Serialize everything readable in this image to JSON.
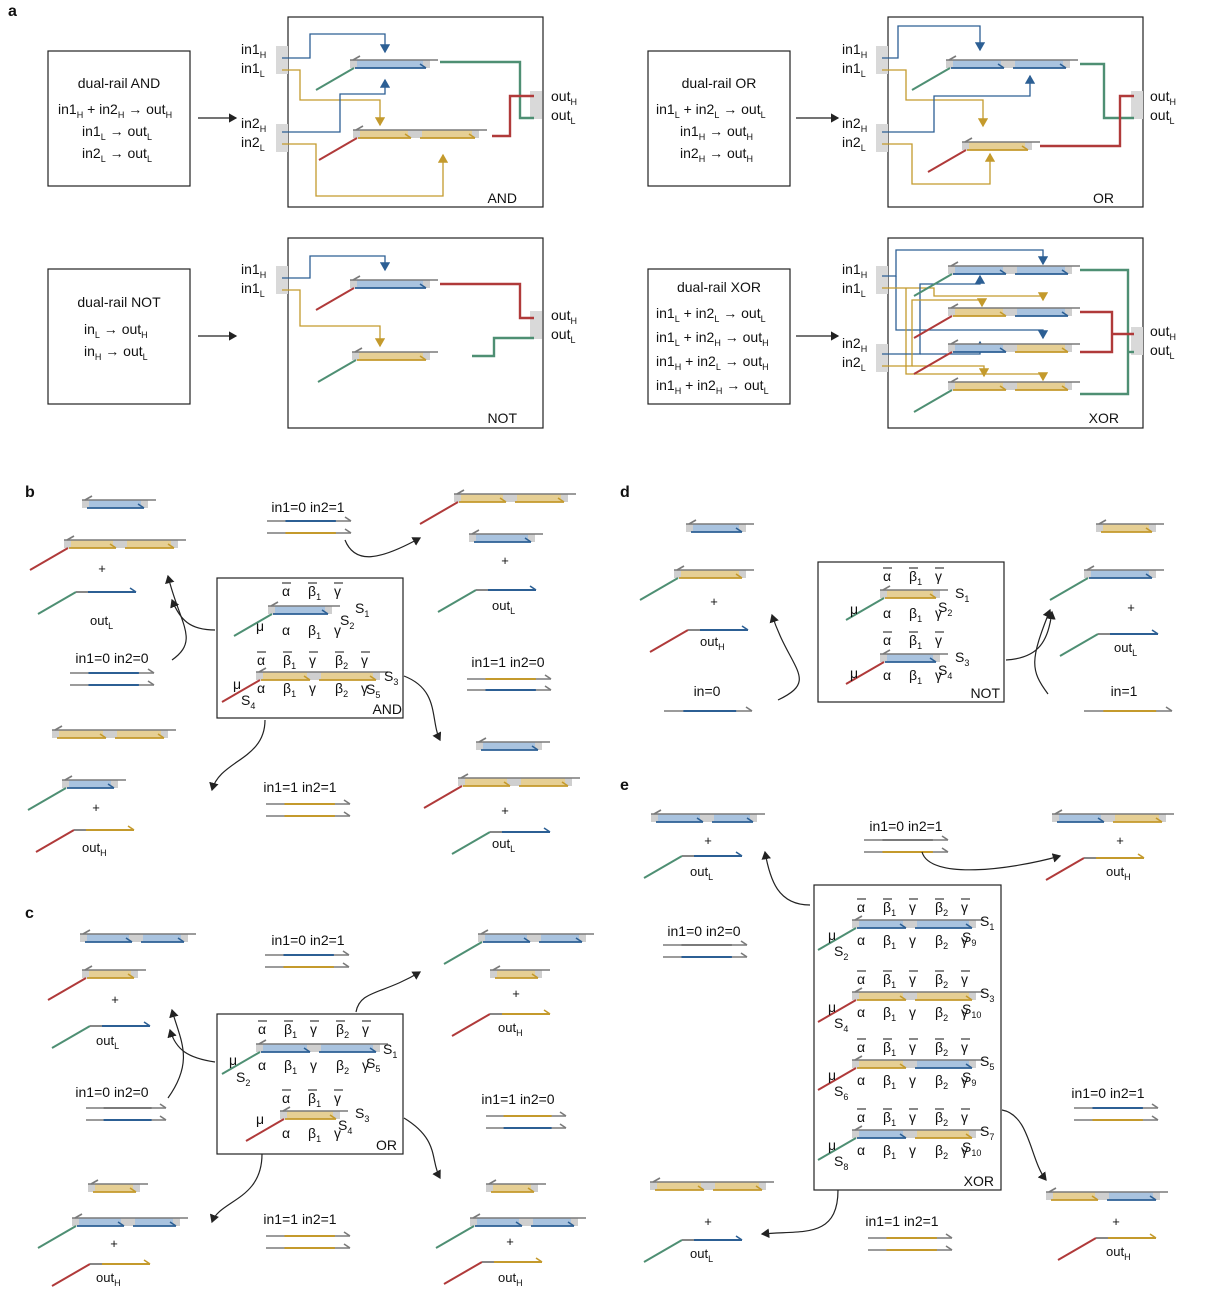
{
  "panels": [
    "a",
    "b",
    "c",
    "d",
    "e"
  ],
  "panel_a": {
    "and_box": {
      "title": "dual-rail AND",
      "eq1": "in1",
      "eq1b": " + in2",
      "eq1c": " → out",
      "eq2": "in1",
      "eq2b": " → out",
      "eq3": "in2",
      "eq3b": " → out"
    },
    "or_box": {
      "title": "dual-rail OR",
      "eq1": "in1",
      "eq1b": " + in2",
      "eq1c": " → out",
      "eq2": "in1",
      "eq2b": " → out",
      "eq3": "in2",
      "eq3b": " → out"
    },
    "not_box": {
      "title": "dual-rail NOT",
      "eq1": "in",
      "eq1b": " → out",
      "eq2": "in",
      "eq2b": " → out"
    },
    "xor_box": {
      "title": "dual-rail XOR",
      "rows": [
        "in1",
        "in1",
        "in1",
        "in1"
      ]
    },
    "circuit_labels": [
      "AND",
      "OR",
      "NOT",
      "XOR"
    ],
    "subs": {
      "H": "H",
      "L": "L"
    },
    "in1": "in1",
    "in2": "in2",
    "in": "in",
    "out": "out"
  },
  "cases": {
    "c00": "in1=0 in2=0",
    "c01": "in1=0 in2=1",
    "c10": "in1=1 in2=0",
    "c11": "in1=1 in2=1",
    "n0": "in=0",
    "n1": "in=1"
  },
  "plus": "+",
  "greek": {
    "mu": "μ",
    "alpha": "α",
    "beta": "β",
    "gamma": "γ"
  },
  "species": {
    "S": "S"
  },
  "gate_labels": {
    "b": "AND",
    "c": "OR",
    "d": "NOT",
    "e": "XOR"
  },
  "colors": {
    "blue": "#2c5f94",
    "blue_fill": "#a9c3df",
    "gold": "#c49a2c",
    "gold_fill": "#e6cf94",
    "green": "#4e8f73",
    "red": "#b03a3a",
    "gray": "#7a7a7a",
    "gray_fill": "#cfcfcf"
  }
}
